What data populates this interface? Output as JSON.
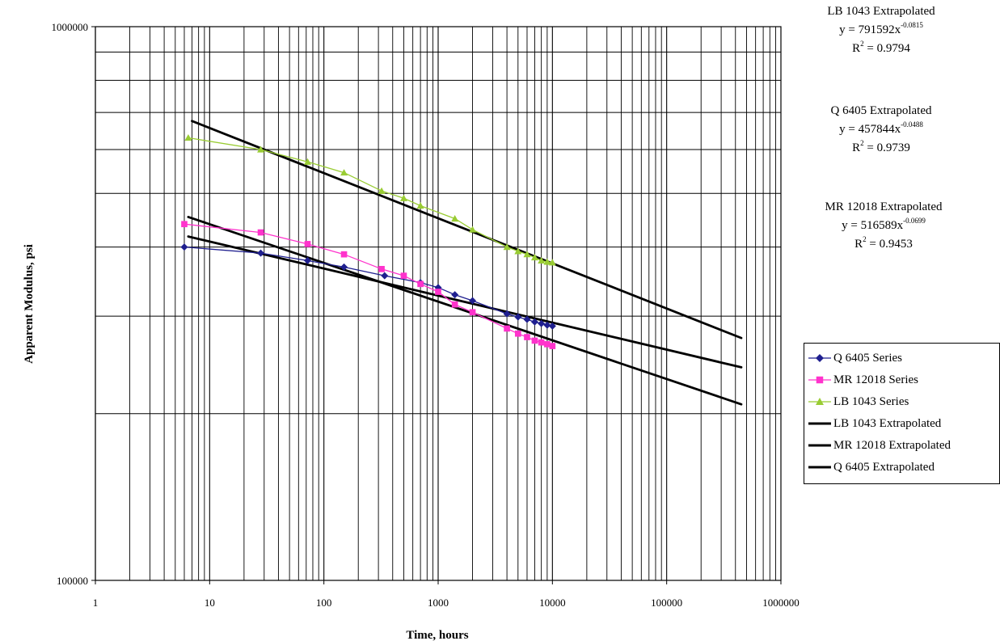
{
  "chart_data": {
    "type": "scatter",
    "title": "",
    "xlabel": "Time, hours",
    "ylabel": "Apparent Modulus, psi",
    "xscale": "log",
    "yscale": "log",
    "xlim": [
      1,
      1000000
    ],
    "ylim": [
      100000,
      1000000
    ],
    "grid": true,
    "legend_position": "right",
    "x_ticks": [
      "1",
      "10",
      "100",
      "1000",
      "10000",
      "100000",
      "1000000"
    ],
    "y_ticks": [
      "100000",
      "1000000"
    ],
    "series": [
      {
        "name": "Q 6405 Series",
        "kind": "markers-line",
        "marker": "diamond",
        "color": "#1f1f8f",
        "points": [
          [
            6,
            400000
          ],
          [
            28,
            390000
          ],
          [
            72,
            378000
          ],
          [
            150,
            368000
          ],
          [
            340,
            355000
          ],
          [
            700,
            345000
          ],
          [
            1000,
            338000
          ],
          [
            1400,
            328000
          ],
          [
            2000,
            320000
          ],
          [
            4000,
            303000
          ],
          [
            5000,
            299000
          ],
          [
            6000,
            296000
          ],
          [
            7000,
            293000
          ],
          [
            8000,
            291000
          ],
          [
            9000,
            289000
          ],
          [
            10000,
            288000
          ]
        ]
      },
      {
        "name": "MR 12018 Series",
        "kind": "markers-line",
        "marker": "square",
        "color": "#ff33cc",
        "points": [
          [
            6,
            440000
          ],
          [
            28,
            425000
          ],
          [
            72,
            405000
          ],
          [
            150,
            388000
          ],
          [
            320,
            365000
          ],
          [
            500,
            355000
          ],
          [
            700,
            343000
          ],
          [
            1000,
            332000
          ],
          [
            1400,
            315000
          ],
          [
            2000,
            305000
          ],
          [
            4000,
            285000
          ],
          [
            5000,
            279000
          ],
          [
            6000,
            275000
          ],
          [
            7000,
            271000
          ],
          [
            8000,
            269000
          ],
          [
            9000,
            267000
          ],
          [
            10000,
            265000
          ]
        ]
      },
      {
        "name": "LB 1043 Series",
        "kind": "markers-line",
        "marker": "triangle",
        "color": "#99cc33",
        "points": [
          [
            6.5,
            630000
          ],
          [
            28,
            600000
          ],
          [
            72,
            570000
          ],
          [
            150,
            545000
          ],
          [
            320,
            505000
          ],
          [
            500,
            490000
          ],
          [
            700,
            475000
          ],
          [
            1400,
            450000
          ],
          [
            2000,
            430000
          ],
          [
            4000,
            400000
          ],
          [
            5000,
            393000
          ],
          [
            6000,
            388000
          ],
          [
            7000,
            383000
          ],
          [
            8000,
            378000
          ],
          [
            9000,
            376000
          ],
          [
            10000,
            375000
          ]
        ]
      },
      {
        "name": "LB 1043 Extrapolated",
        "kind": "power-fit",
        "color": "#000000",
        "equation": "y = 791592x",
        "exponent_label": "-0.0815",
        "r2_label": "R",
        "r2_value": " = 0.9794",
        "a": 791592,
        "b": -0.0815,
        "x_range": [
          7,
          450000
        ]
      },
      {
        "name": "MR 12018 Extrapolated",
        "kind": "power-fit",
        "color": "#000000",
        "equation": "y = 516589x",
        "exponent_label": "-0.0699",
        "r2_label": "R",
        "r2_value": " = 0.9453",
        "a": 516589,
        "b": -0.0699,
        "x_range": [
          6.5,
          450000
        ]
      },
      {
        "name": "Q 6405 Extrapolated",
        "kind": "power-fit",
        "color": "#000000",
        "equation": "y = 457844x",
        "exponent_label": "-0.0488",
        "r2_label": "R",
        "r2_value": " = 0.9739",
        "a": 457844,
        "b": -0.0488,
        "x_range": [
          6.5,
          450000
        ]
      }
    ]
  },
  "annotations": [
    {
      "title": "LB 1043 Extrapolated",
      "equation": "y = 791592x",
      "exponent": "-0.0815",
      "r2_label": "R",
      "r2_sup": "2",
      "r2_value": " = 0.9794"
    },
    {
      "title": "Q 6405 Extrapolated",
      "equation": "y = 457844x",
      "exponent": "-0.0488",
      "r2_label": "R",
      "r2_sup": "2",
      "r2_value": " = 0.9739"
    },
    {
      "title": "MR 12018 Extrapolated",
      "equation": "y = 516589x",
      "exponent": "-0.0699",
      "r2_label": "R",
      "r2_sup": "2",
      "r2_value": " = 0.9453"
    }
  ],
  "legend": [
    {
      "label": "Q 6405 Series",
      "marker": "diamond",
      "color": "#1f1f8f",
      "thick": false
    },
    {
      "label": "MR 12018 Series",
      "marker": "square",
      "color": "#ff33cc",
      "thick": false
    },
    {
      "label": "LB 1043 Series",
      "marker": "triangle",
      "color": "#99cc33",
      "thick": false
    },
    {
      "label": "LB 1043 Extrapolated",
      "marker": "none",
      "color": "#000000",
      "thick": true
    },
    {
      "label": "MR 12018 Extrapolated",
      "marker": "none",
      "color": "#000000",
      "thick": true
    },
    {
      "label": "Q 6405 Extrapolated",
      "marker": "none",
      "color": "#000000",
      "thick": true
    }
  ]
}
